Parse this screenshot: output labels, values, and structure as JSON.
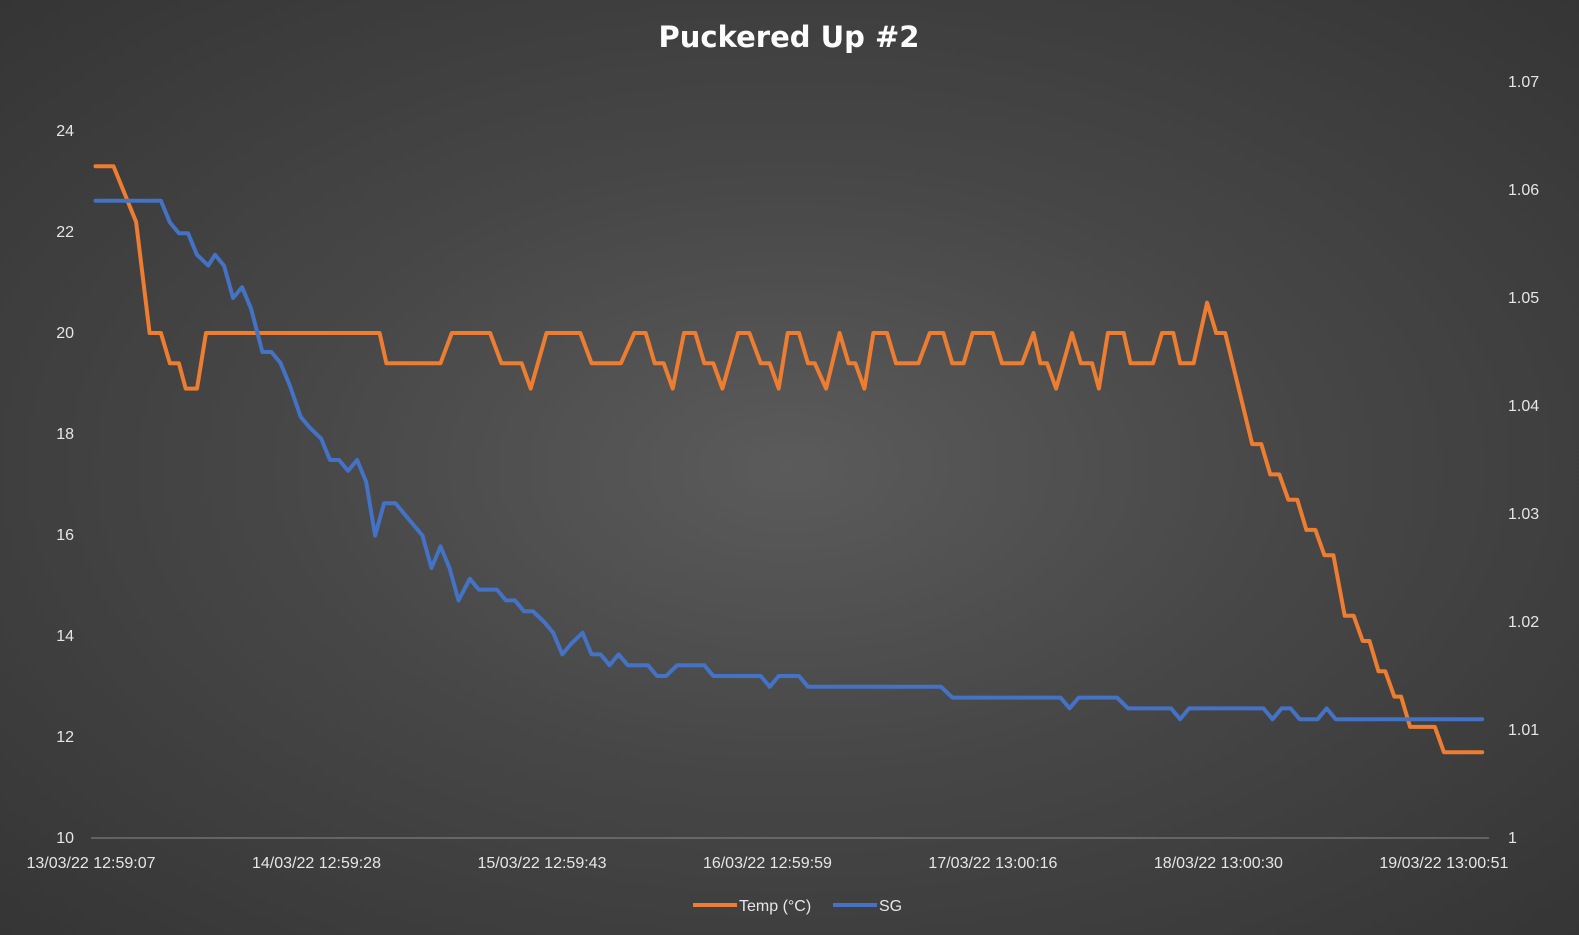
{
  "chart_data": {
    "type": "line",
    "title": "Puckered Up #2",
    "x_tick_labels": [
      "13/03/22 12:59:07",
      "14/03/22 12:59:28",
      "15/03/22 12:59:43",
      "16/03/22 12:59:59",
      "17/03/22 13:00:16",
      "18/03/22 13:00:30",
      "19/03/22 13:00:51"
    ],
    "x_range_days": [
      0,
      6.2
    ],
    "y_left": {
      "ticks": [
        "10",
        "12",
        "14",
        "16",
        "18",
        "20",
        "22",
        "24"
      ],
      "min": 10,
      "max": 24
    },
    "y_right": {
      "ticks": [
        "1",
        "1.01",
        "1.02",
        "1.03",
        "1.04",
        "1.05",
        "1.06",
        "1.07"
      ],
      "min": 1.0,
      "max": 1.07
    },
    "legend_position": "bottom",
    "grid": false,
    "series": [
      {
        "name": "Temp (°C)",
        "axis": "left",
        "color": "#ed7d31",
        "points": [
          [
            0.02,
            23.3
          ],
          [
            0.1,
            23.3
          ],
          [
            0.2,
            22.2
          ],
          [
            0.26,
            20.0
          ],
          [
            0.31,
            20.0
          ],
          [
            0.35,
            19.4
          ],
          [
            0.39,
            19.4
          ],
          [
            0.42,
            18.9
          ],
          [
            0.47,
            18.9
          ],
          [
            0.51,
            20.0
          ],
          [
            1.28,
            20.0
          ],
          [
            1.31,
            19.4
          ],
          [
            1.55,
            19.4
          ],
          [
            1.6,
            20.0
          ],
          [
            1.77,
            20.0
          ],
          [
            1.82,
            19.4
          ],
          [
            1.91,
            19.4
          ],
          [
            1.95,
            18.9
          ],
          [
            2.02,
            20.0
          ],
          [
            2.17,
            20.0
          ],
          [
            2.22,
            19.4
          ],
          [
            2.35,
            19.4
          ],
          [
            2.41,
            20.0
          ],
          [
            2.46,
            20.0
          ],
          [
            2.5,
            19.4
          ],
          [
            2.54,
            19.4
          ],
          [
            2.58,
            18.9
          ],
          [
            2.63,
            20.0
          ],
          [
            2.68,
            20.0
          ],
          [
            2.72,
            19.4
          ],
          [
            2.76,
            19.4
          ],
          [
            2.8,
            18.9
          ],
          [
            2.87,
            20.0
          ],
          [
            2.92,
            20.0
          ],
          [
            2.97,
            19.4
          ],
          [
            3.01,
            19.4
          ],
          [
            3.05,
            18.9
          ],
          [
            3.09,
            20.0
          ],
          [
            3.14,
            20.0
          ],
          [
            3.18,
            19.4
          ],
          [
            3.21,
            19.4
          ],
          [
            3.26,
            18.9
          ],
          [
            3.32,
            20.0
          ],
          [
            3.36,
            19.4
          ],
          [
            3.39,
            19.4
          ],
          [
            3.43,
            18.9
          ],
          [
            3.47,
            20.0
          ],
          [
            3.53,
            20.0
          ],
          [
            3.57,
            19.4
          ],
          [
            3.67,
            19.4
          ],
          [
            3.72,
            20.0
          ],
          [
            3.78,
            20.0
          ],
          [
            3.82,
            19.4
          ],
          [
            3.87,
            19.4
          ],
          [
            3.91,
            20.0
          ],
          [
            4.0,
            20.0
          ],
          [
            4.04,
            19.4
          ],
          [
            4.13,
            19.4
          ],
          [
            4.18,
            20.0
          ],
          [
            4.21,
            19.4
          ],
          [
            4.24,
            19.4
          ],
          [
            4.28,
            18.9
          ],
          [
            4.35,
            20.0
          ],
          [
            4.39,
            19.4
          ],
          [
            4.44,
            19.4
          ],
          [
            4.47,
            18.9
          ],
          [
            4.51,
            20.0
          ],
          [
            4.58,
            20.0
          ],
          [
            4.61,
            19.4
          ],
          [
            4.71,
            19.4
          ],
          [
            4.75,
            20.0
          ],
          [
            4.8,
            20.0
          ],
          [
            4.83,
            19.4
          ],
          [
            4.89,
            19.4
          ],
          [
            4.95,
            20.6
          ],
          [
            4.99,
            20.0
          ],
          [
            5.03,
            20.0
          ],
          [
            5.15,
            17.8
          ],
          [
            5.19,
            17.8
          ],
          [
            5.23,
            17.2
          ],
          [
            5.27,
            17.2
          ],
          [
            5.31,
            16.7
          ],
          [
            5.35,
            16.7
          ],
          [
            5.39,
            16.1
          ],
          [
            5.43,
            16.1
          ],
          [
            5.47,
            15.6
          ],
          [
            5.51,
            15.6
          ],
          [
            5.56,
            14.4
          ],
          [
            5.6,
            14.4
          ],
          [
            5.64,
            13.9
          ],
          [
            5.67,
            13.9
          ],
          [
            5.71,
            13.3
          ],
          [
            5.74,
            13.3
          ],
          [
            5.78,
            12.8
          ],
          [
            5.81,
            12.8
          ],
          [
            5.85,
            12.2
          ],
          [
            5.96,
            12.2
          ],
          [
            6.0,
            11.7
          ],
          [
            6.17,
            11.7
          ]
        ]
      },
      {
        "name": "SG",
        "axis": "right",
        "color": "#4472c4",
        "points": [
          [
            0.02,
            1.059
          ],
          [
            0.31,
            1.059
          ],
          [
            0.35,
            1.057
          ],
          [
            0.39,
            1.056
          ],
          [
            0.43,
            1.056
          ],
          [
            0.47,
            1.054
          ],
          [
            0.52,
            1.053
          ],
          [
            0.55,
            1.054
          ],
          [
            0.59,
            1.053
          ],
          [
            0.63,
            1.05
          ],
          [
            0.67,
            1.051
          ],
          [
            0.71,
            1.049
          ],
          [
            0.76,
            1.045
          ],
          [
            0.8,
            1.045
          ],
          [
            0.84,
            1.044
          ],
          [
            0.88,
            1.042
          ],
          [
            0.93,
            1.039
          ],
          [
            0.97,
            1.038
          ],
          [
            1.02,
            1.037
          ],
          [
            1.06,
            1.035
          ],
          [
            1.1,
            1.035
          ],
          [
            1.14,
            1.034
          ],
          [
            1.18,
            1.035
          ],
          [
            1.22,
            1.033
          ],
          [
            1.26,
            1.028
          ],
          [
            1.3,
            1.031
          ],
          [
            1.35,
            1.031
          ],
          [
            1.39,
            1.03
          ],
          [
            1.43,
            1.029
          ],
          [
            1.47,
            1.028
          ],
          [
            1.51,
            1.025
          ],
          [
            1.55,
            1.027
          ],
          [
            1.59,
            1.025
          ],
          [
            1.63,
            1.022
          ],
          [
            1.68,
            1.024
          ],
          [
            1.72,
            1.023
          ],
          [
            1.8,
            1.023
          ],
          [
            1.84,
            1.022
          ],
          [
            1.88,
            1.022
          ],
          [
            1.92,
            1.021
          ],
          [
            1.96,
            1.021
          ],
          [
            2.01,
            1.02
          ],
          [
            2.05,
            1.019
          ],
          [
            2.09,
            1.017
          ],
          [
            2.13,
            1.018
          ],
          [
            2.18,
            1.019
          ],
          [
            2.22,
            1.017
          ],
          [
            2.26,
            1.017
          ],
          [
            2.3,
            1.016
          ],
          [
            2.34,
            1.017
          ],
          [
            2.38,
            1.016
          ],
          [
            2.47,
            1.016
          ],
          [
            2.51,
            1.015
          ],
          [
            2.55,
            1.015
          ],
          [
            2.6,
            1.016
          ],
          [
            2.72,
            1.016
          ],
          [
            2.76,
            1.015
          ],
          [
            2.97,
            1.015
          ],
          [
            3.01,
            1.014
          ],
          [
            3.05,
            1.015
          ],
          [
            3.14,
            1.015
          ],
          [
            3.18,
            1.014
          ],
          [
            3.77,
            1.014
          ],
          [
            3.82,
            1.013
          ],
          [
            4.3,
            1.013
          ],
          [
            4.34,
            1.012
          ],
          [
            4.38,
            1.013
          ],
          [
            4.55,
            1.013
          ],
          [
            4.6,
            1.012
          ],
          [
            4.79,
            1.012
          ],
          [
            4.83,
            1.011
          ],
          [
            4.87,
            1.012
          ],
          [
            5.2,
            1.012
          ],
          [
            5.24,
            1.011
          ],
          [
            5.28,
            1.012
          ],
          [
            5.32,
            1.012
          ],
          [
            5.36,
            1.011
          ],
          [
            5.44,
            1.011
          ],
          [
            5.48,
            1.012
          ],
          [
            5.52,
            1.011
          ],
          [
            6.17,
            1.011
          ]
        ]
      }
    ]
  }
}
